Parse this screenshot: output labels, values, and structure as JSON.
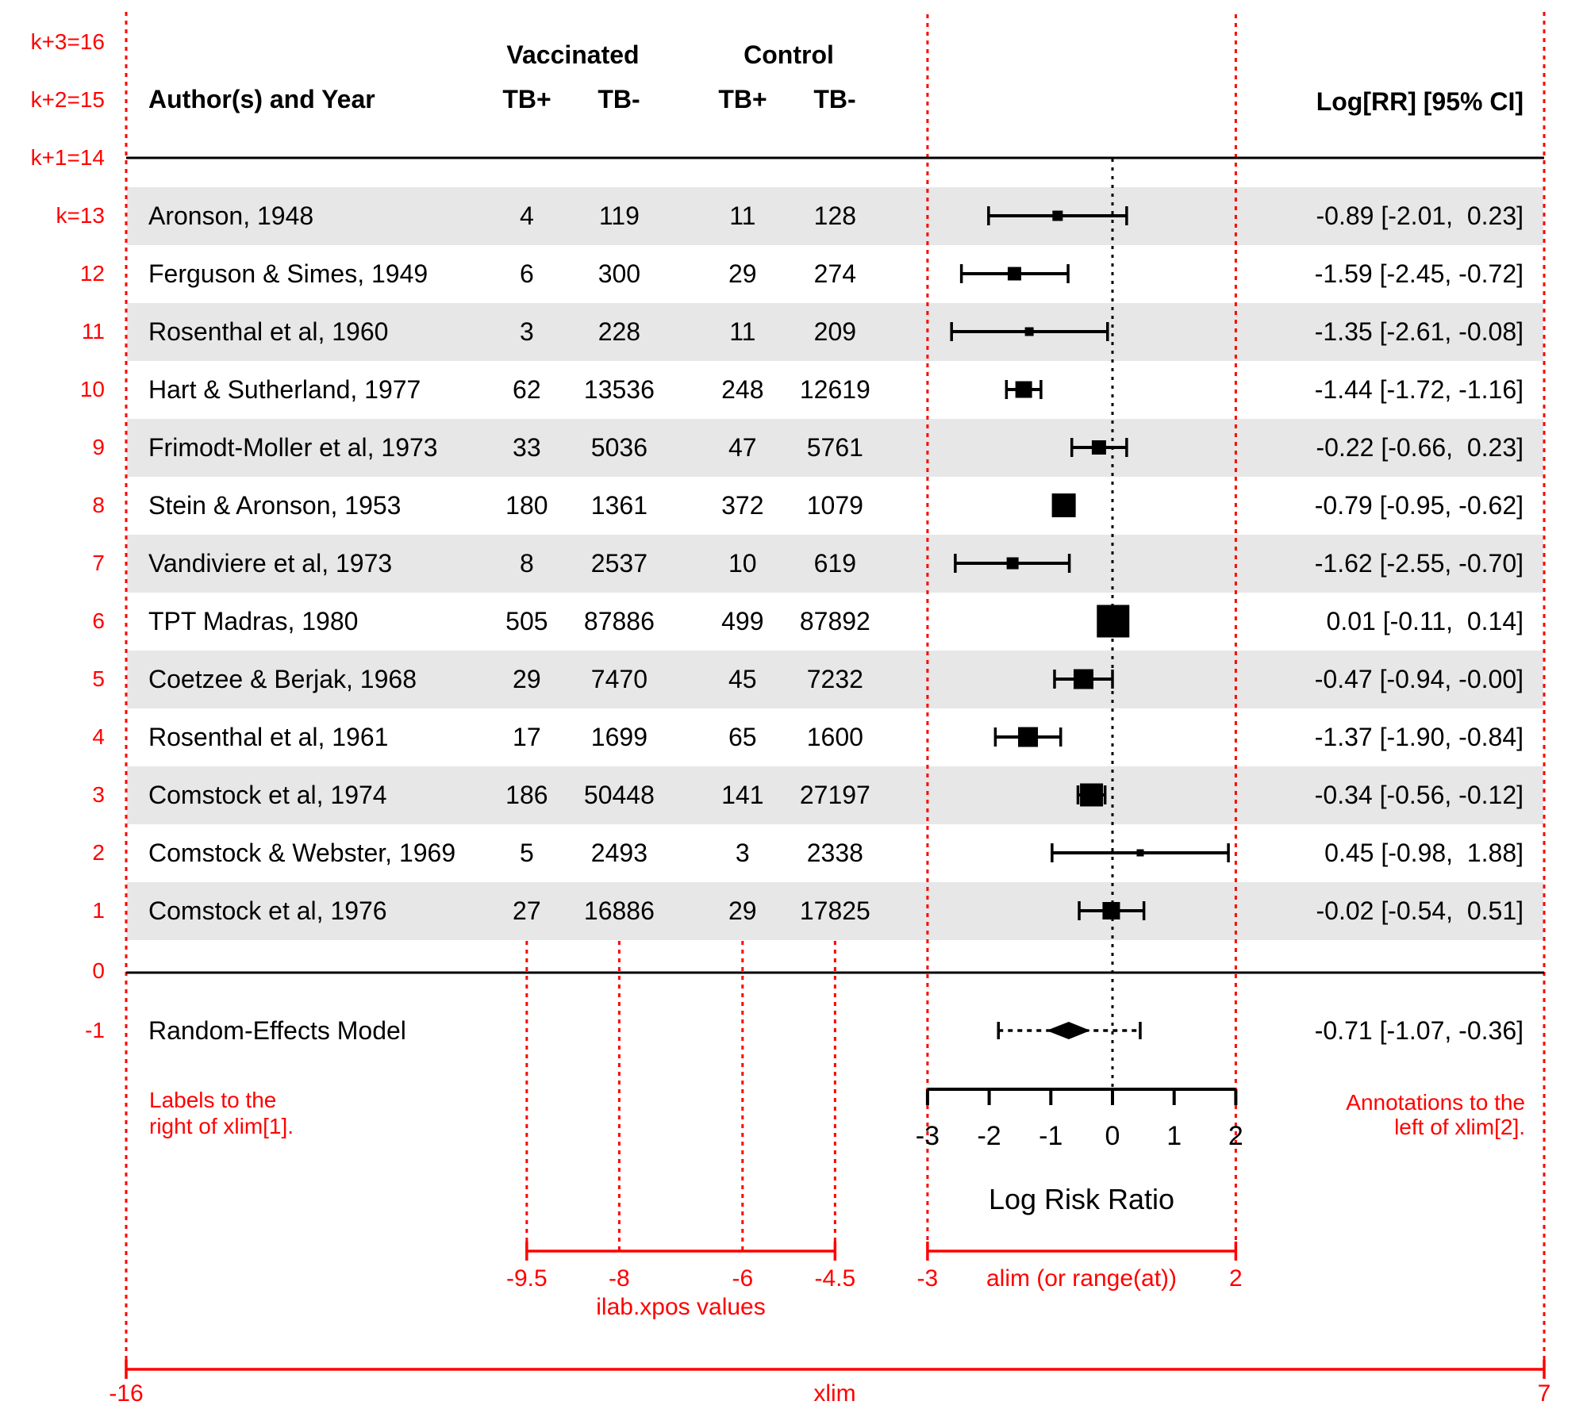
{
  "colors": {
    "accent_red": "#FF0000",
    "row_shade": "#E7E7E7",
    "ink": "#000000"
  },
  "table": {
    "author_header": "Author(s) and Year",
    "group_headers": [
      {
        "label": "Vaccinated"
      },
      {
        "label": "Control"
      }
    ],
    "sub_headers": [
      "TB+",
      "TB-",
      "TB+",
      "TB-"
    ],
    "annotation_header": "Log[RR] [95% CI]"
  },
  "chart_data": {
    "type": "forest",
    "xlabel": "Log Risk Ratio",
    "axis_ticks": [
      -3,
      -2,
      -1,
      0,
      1,
      2
    ],
    "alim": [
      -3,
      2
    ],
    "xlim": [
      -16,
      7
    ],
    "ilab_xpos": [
      -9.5,
      -8,
      -6,
      -4.5
    ],
    "studies": [
      {
        "k": 13,
        "author": "Aronson, 1948",
        "tb_pos_vac": 4,
        "tb_neg_vac": 119,
        "tb_pos_ctl": 11,
        "tb_neg_ctl": 128,
        "estimate": -0.89,
        "ci_lb": -2.01,
        "ci_ub": 0.23,
        "annotation": "-0.89 [-2.01,  0.23]",
        "size": 13,
        "shaded": true
      },
      {
        "k": 12,
        "author": "Ferguson & Simes, 1949",
        "tb_pos_vac": 6,
        "tb_neg_vac": 300,
        "tb_pos_ctl": 29,
        "tb_neg_ctl": 274,
        "estimate": -1.59,
        "ci_lb": -2.45,
        "ci_ub": -0.72,
        "annotation": "-1.59 [-2.45, -0.72]",
        "size": 17,
        "shaded": false
      },
      {
        "k": 11,
        "author": "Rosenthal et al, 1960",
        "tb_pos_vac": 3,
        "tb_neg_vac": 228,
        "tb_pos_ctl": 11,
        "tb_neg_ctl": 209,
        "estimate": -1.35,
        "ci_lb": -2.61,
        "ci_ub": -0.08,
        "annotation": "-1.35 [-2.61, -0.08]",
        "size": 11,
        "shaded": true
      },
      {
        "k": 10,
        "author": "Hart & Sutherland, 1977",
        "tb_pos_vac": 62,
        "tb_neg_vac": 13536,
        "tb_pos_ctl": 248,
        "tb_neg_ctl": 12619,
        "estimate": -1.44,
        "ci_lb": -1.72,
        "ci_ub": -1.16,
        "annotation": "-1.44 [-1.72, -1.16]",
        "size": 21,
        "shaded": false
      },
      {
        "k": 9,
        "author": "Frimodt-Moller et al, 1973",
        "tb_pos_vac": 33,
        "tb_neg_vac": 5036,
        "tb_pos_ctl": 47,
        "tb_neg_ctl": 5761,
        "estimate": -0.22,
        "ci_lb": -0.66,
        "ci_ub": 0.23,
        "annotation": "-0.22 [-0.66,  0.23]",
        "size": 18,
        "shaded": true
      },
      {
        "k": 8,
        "author": "Stein & Aronson, 1953",
        "tb_pos_vac": 180,
        "tb_neg_vac": 1361,
        "tb_pos_ctl": 372,
        "tb_neg_ctl": 1079,
        "estimate": -0.79,
        "ci_lb": -0.95,
        "ci_ub": -0.62,
        "annotation": "-0.79 [-0.95, -0.62]",
        "size": 30,
        "shaded": false
      },
      {
        "k": 7,
        "author": "Vandiviere et al, 1973",
        "tb_pos_vac": 8,
        "tb_neg_vac": 2537,
        "tb_pos_ctl": 10,
        "tb_neg_ctl": 619,
        "estimate": -1.62,
        "ci_lb": -2.55,
        "ci_ub": -0.7,
        "annotation": "-1.62 [-2.55, -0.70]",
        "size": 15,
        "shaded": true
      },
      {
        "k": 6,
        "author": "TPT Madras, 1980",
        "tb_pos_vac": 505,
        "tb_neg_vac": 87886,
        "tb_pos_ctl": 499,
        "tb_neg_ctl": 87892,
        "estimate": 0.01,
        "ci_lb": -0.11,
        "ci_ub": 0.14,
        "annotation": "0.01 [-0.11,  0.14]",
        "size": 41,
        "shaded": false
      },
      {
        "k": 5,
        "author": "Coetzee & Berjak, 1968",
        "tb_pos_vac": 29,
        "tb_neg_vac": 7470,
        "tb_pos_ctl": 45,
        "tb_neg_ctl": 7232,
        "estimate": -0.47,
        "ci_lb": -0.94,
        "ci_ub": 0.0,
        "annotation": "-0.47 [-0.94, -0.00]",
        "size": 25,
        "shaded": true
      },
      {
        "k": 4,
        "author": "Rosenthal et al, 1961",
        "tb_pos_vac": 17,
        "tb_neg_vac": 1699,
        "tb_pos_ctl": 65,
        "tb_neg_ctl": 1600,
        "estimate": -1.37,
        "ci_lb": -1.9,
        "ci_ub": -0.84,
        "annotation": "-1.37 [-1.90, -0.84]",
        "size": 25,
        "shaded": false
      },
      {
        "k": 3,
        "author": "Comstock et al, 1974",
        "tb_pos_vac": 186,
        "tb_neg_vac": 50448,
        "tb_pos_ctl": 141,
        "tb_neg_ctl": 27197,
        "estimate": -0.34,
        "ci_lb": -0.56,
        "ci_ub": -0.12,
        "annotation": "-0.34 [-0.56, -0.12]",
        "size": 29,
        "shaded": true
      },
      {
        "k": 2,
        "author": "Comstock & Webster, 1969",
        "tb_pos_vac": 5,
        "tb_neg_vac": 2493,
        "tb_pos_ctl": 3,
        "tb_neg_ctl": 2338,
        "estimate": 0.45,
        "ci_lb": -0.98,
        "ci_ub": 1.88,
        "annotation": "0.45 [-0.98,  1.88]",
        "size": 9,
        "shaded": false
      },
      {
        "k": 1,
        "author": "Comstock et al, 1976",
        "tb_pos_vac": 27,
        "tb_neg_vac": 16886,
        "tb_pos_ctl": 29,
        "tb_neg_ctl": 17825,
        "estimate": -0.02,
        "ci_lb": -0.54,
        "ci_ub": 0.51,
        "annotation": "-0.02 [-0.54,  0.51]",
        "size": 22,
        "shaded": true
      }
    ],
    "summary": {
      "label": "Random-Effects Model",
      "estimate": -0.71,
      "ci_lb": -1.07,
      "ci_ub": -0.36,
      "pred_lb": -1.85,
      "pred_ub": 0.45,
      "annotation": "-0.71 [-1.07, -0.36]"
    }
  },
  "red_annotations": {
    "row_index_labels": [
      "k+3=16",
      "k+2=15",
      "k+1=14",
      "k=13",
      "12",
      "11",
      "10",
      "9",
      "8",
      "7",
      "6",
      "5",
      "4",
      "3",
      "2",
      "1",
      "0",
      "-1"
    ],
    "labels_note_lines": [
      "Labels to the",
      "right of xlim[1]."
    ],
    "annotations_note_lines": [
      "Annotations to the",
      "left of xlim[2]."
    ],
    "ilab_tick_labels": [
      "-9.5",
      "-8",
      "-6",
      "-4.5"
    ],
    "ilab_caption": "ilab.xpos values",
    "alim_tick_labels": [
      "-3",
      "2"
    ],
    "alim_caption": "alim (or range(at))",
    "xlim_tick_labels": [
      "-16",
      "7"
    ],
    "xlim_caption": "xlim"
  }
}
